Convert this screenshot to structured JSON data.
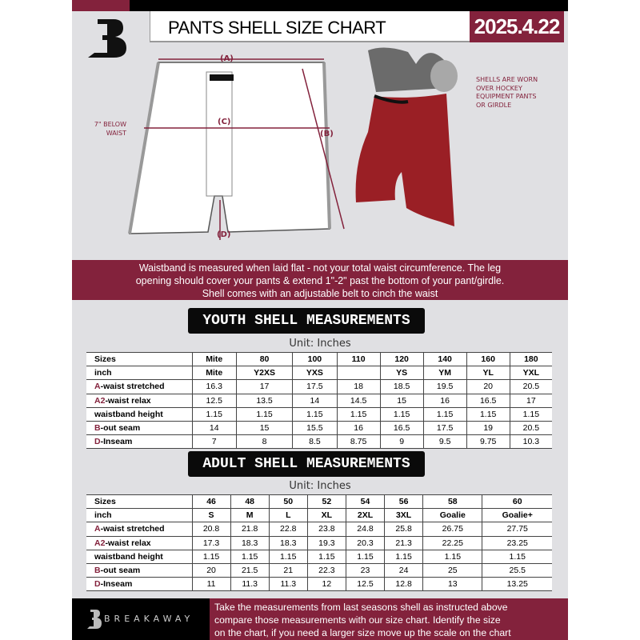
{
  "header": {
    "title": "PANTS SHELL SIZE CHART",
    "date": "2025.4.22"
  },
  "diagram": {
    "label_a": "(A)",
    "label_b": "(B)",
    "label_c": "(C)",
    "label_d": "(D)",
    "below_waist": [
      "7\" BELOW",
      "WAIST"
    ],
    "note": [
      "SHELLS ARE WORN",
      "OVER HOCKEY",
      "EQUIPMENT PANTS",
      "OR GIRDLE"
    ]
  },
  "banner": [
    "Waistband is measured when laid flat - not your total waist circumference. The leg",
    "opening should cover your pants & extend 1\"-2\" past the bottom of your pant/girdle.",
    "Shell comes with an adjustable belt to cinch the waist"
  ],
  "youth": {
    "title": "YOUTH SHELL MEASUREMENTS",
    "unit": "Unit: Inches",
    "rows": [
      {
        "prefix": "",
        "label": "Sizes",
        "values": [
          "Mite",
          "80",
          "100",
          "110",
          "120",
          "140",
          "160",
          "180"
        ]
      },
      {
        "prefix": "",
        "label": "inch",
        "values": [
          "Mite",
          "Y2XS",
          "YXS",
          "",
          "YS",
          "YM",
          "YL",
          "YXL"
        ]
      },
      {
        "prefix": "A",
        "label": "-waist stretched",
        "values": [
          "16.3",
          "17",
          "17.5",
          "18",
          "18.5",
          "19.5",
          "20",
          "20.5"
        ]
      },
      {
        "prefix": "A2",
        "label": "-waist relax",
        "values": [
          "12.5",
          "13.5",
          "14",
          "14.5",
          "15",
          "16",
          "16.5",
          "17"
        ]
      },
      {
        "prefix": "",
        "label": "waistband height",
        "values": [
          "1.15",
          "1.15",
          "1.15",
          "1.15",
          "1.15",
          "1.15",
          "1.15",
          "1.15"
        ]
      },
      {
        "prefix": "B",
        "label": "-out seam",
        "values": [
          "14",
          "15",
          "15.5",
          "16",
          "16.5",
          "17.5",
          "19",
          "20.5"
        ]
      },
      {
        "prefix": "D",
        "label": "-Inseam",
        "values": [
          "7",
          "8",
          "8.5",
          "8.75",
          "9",
          "9.5",
          "9.75",
          "10.3"
        ]
      }
    ]
  },
  "adult": {
    "title": "ADULT SHELL MEASUREMENTS",
    "unit": "Unit: Inches",
    "rows": [
      {
        "prefix": "",
        "label": "Sizes",
        "values": [
          "46",
          "48",
          "50",
          "52",
          "54",
          "56",
          "58",
          "60"
        ]
      },
      {
        "prefix": "",
        "label": "inch",
        "values": [
          "S",
          "M",
          "L",
          "XL",
          "2XL",
          "3XL",
          "Goalie",
          "Goalie+"
        ]
      },
      {
        "prefix": "A",
        "label": "-waist stretched",
        "values": [
          "20.8",
          "21.8",
          "22.8",
          "23.8",
          "24.8",
          "25.8",
          "26.75",
          "27.75"
        ]
      },
      {
        "prefix": "A2",
        "label": "-waist relax",
        "values": [
          "17.3",
          "18.3",
          "18.3",
          "19.3",
          "20.3",
          "21.3",
          "22.25",
          "23.25"
        ]
      },
      {
        "prefix": "",
        "label": "waistband height",
        "values": [
          "1.15",
          "1.15",
          "1.15",
          "1.15",
          "1.15",
          "1.15",
          "1.15",
          "1.15"
        ]
      },
      {
        "prefix": "B",
        "label": "-out seam",
        "values": [
          "20",
          "21.5",
          "21",
          "22.3",
          "23",
          "24",
          "25",
          "25.5"
        ]
      },
      {
        "prefix": "D",
        "label": "-Inseam",
        "values": [
          "11",
          "11.3",
          "11.3",
          "12",
          "12.5",
          "12.8",
          "13",
          "13.25"
        ]
      }
    ]
  },
  "footer": {
    "brand": "BREAKAWAY",
    "logo_letter": "B",
    "text": [
      "Take the measurements from last seasons shell as instructed above",
      "compare those measurements  with our size chart. Identify the size",
      "on the chart, if you need a larger size move up the scale on the chart"
    ]
  },
  "colors": {
    "accent": "#83223c",
    "dark": "#000000",
    "background": "#e0e0e3"
  }
}
